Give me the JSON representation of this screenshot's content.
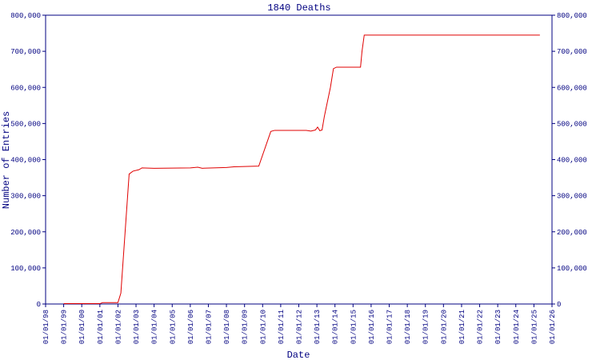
{
  "chart_data": {
    "type": "line",
    "title": "1840 Deaths",
    "x_label": "Date",
    "y_label": "Number of Entries",
    "x": [
      "01/01/99",
      "01/01/01",
      "03/01/01",
      "01/01/02",
      "03/01/02",
      "08/15/02",
      "11/01/02",
      "03/01/03",
      "05/01/03",
      "01/01/04",
      "01/01/06",
      "06/01/06",
      "09/01/06",
      "01/01/08",
      "06/01/08",
      "01/01/09",
      "10/15/09",
      "06/15/10",
      "09/01/10",
      "06/01/12",
      "09/01/12",
      "12/01/12",
      "01/15/13",
      "03/01/13",
      "04/15/13",
      "06/01/13",
      "10/01/13",
      "12/01/13",
      "02/01/14",
      "06/01/15",
      "07/01/15",
      "08/15/15",
      "05/01/25"
    ],
    "series": [
      {
        "name": "1840 Deaths",
        "color": "#e00000",
        "values": [
          1000,
          1000,
          4000,
          4000,
          30000,
          360000,
          368000,
          372000,
          377000,
          376000,
          377000,
          379000,
          376000,
          378000,
          380000,
          381000,
          382000,
          478000,
          481000,
          481000,
          479000,
          482000,
          490000,
          480000,
          482000,
          520000,
          600000,
          652000,
          656000,
          656000,
          700000,
          745000,
          745000
        ]
      }
    ],
    "xlim": [
      "01/01/98",
      "01/01/26"
    ],
    "xticks": [
      "01/01/98",
      "01/01/99",
      "01/01/00",
      "01/01/01",
      "01/01/02",
      "01/01/03",
      "01/01/04",
      "01/01/05",
      "01/01/06",
      "01/01/07",
      "01/01/08",
      "01/01/09",
      "01/01/10",
      "01/01/11",
      "01/01/12",
      "01/01/13",
      "01/01/14",
      "01/01/15",
      "01/01/16",
      "01/01/17",
      "01/01/18",
      "01/01/19",
      "01/01/20",
      "01/01/21",
      "01/01/22",
      "01/01/23",
      "01/01/24",
      "01/01/25",
      "01/01/26"
    ],
    "ylim": [
      0,
      800000
    ],
    "yticks": [
      0,
      {
        "value": 100000,
        "label": "100,000"
      },
      {
        "value": 200000,
        "label": "200,000"
      },
      {
        "value": 300000,
        "label": "300,000"
      },
      {
        "value": 400000,
        "label": "400,000"
      },
      {
        "value": 500000,
        "label": "500,000"
      },
      {
        "value": 600000,
        "label": "600,000"
      },
      {
        "value": 700000,
        "label": "700,000"
      },
      {
        "value": 800000,
        "label": "800,000"
      }
    ],
    "y2lim": [
      0,
      800000
    ],
    "y2ticks": [
      0,
      {
        "value": 100000,
        "label": "100,000"
      },
      {
        "value": 200000,
        "label": "200,000"
      },
      {
        "value": 300000,
        "label": "300,000"
      },
      {
        "value": 400000,
        "label": "400,000"
      },
      {
        "value": 500000,
        "label": "500,000"
      },
      {
        "value": 600000,
        "label": "600,000"
      },
      {
        "value": 700000,
        "label": "700,000"
      },
      {
        "value": 800000,
        "label": "800,000"
      }
    ],
    "axis_color": "#000080",
    "grid": false
  }
}
